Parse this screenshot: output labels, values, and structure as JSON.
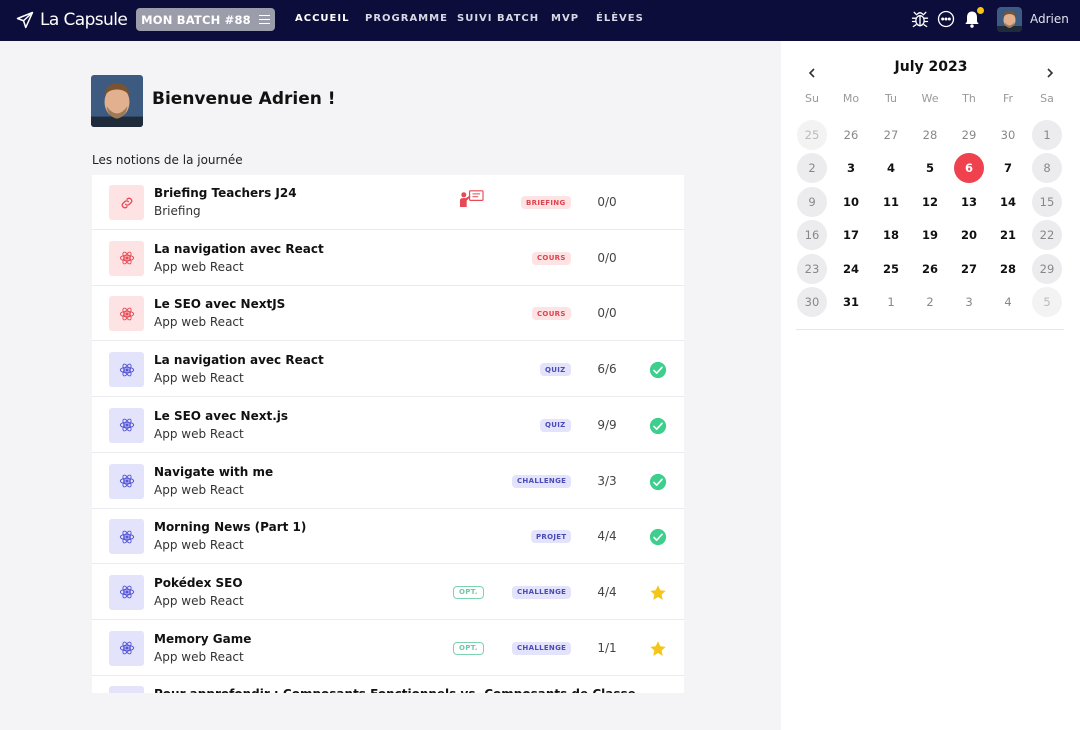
{
  "navbar": {
    "logo_text": "La Capsule",
    "batch_label": "MON BATCH #88",
    "links": [
      "ACCUEIL",
      "PROGRAMME",
      "SUIVI BATCH",
      "MVP",
      "ÉLÈVES"
    ],
    "active_link": "ACCUEIL",
    "username": "Adrien",
    "icons": [
      "bug-icon",
      "chat-icon",
      "bell-icon"
    ],
    "notification_dot_color": "#f5c518"
  },
  "main": {
    "welcome": "Bienvenue Adrien !",
    "section_title": "Les notions de la journée",
    "notions": [
      {
        "title": "Briefing Teachers J24",
        "subtitle": "Briefing",
        "tag": "BRIEFING",
        "count": "0/0",
        "color": "red",
        "icon": "link-icon",
        "teacher": true,
        "opt": false,
        "status": ""
      },
      {
        "title": "La navigation avec React",
        "subtitle": "App web React",
        "tag": "COURS",
        "count": "0/0",
        "color": "red",
        "icon": "react-icon",
        "opt": false,
        "status": ""
      },
      {
        "title": "Le SEO avec NextJS",
        "subtitle": "App web React",
        "tag": "COURS",
        "count": "0/0",
        "color": "red",
        "icon": "react-icon",
        "opt": false,
        "status": ""
      },
      {
        "title": "La navigation avec React",
        "subtitle": "App web React",
        "tag": "QUIZ",
        "count": "6/6",
        "color": "purple",
        "icon": "react-icon",
        "opt": false,
        "status": "check"
      },
      {
        "title": "Le SEO avec Next.js",
        "subtitle": "App web React",
        "tag": "QUIZ",
        "count": "9/9",
        "color": "purple",
        "icon": "react-icon",
        "opt": false,
        "status": "check"
      },
      {
        "title": "Navigate with me",
        "subtitle": "App web React",
        "tag": "CHALLENGE",
        "count": "3/3",
        "color": "purple",
        "icon": "react-icon",
        "opt": false,
        "status": "check"
      },
      {
        "title": "Morning News (Part 1)",
        "subtitle": "App web React",
        "tag": "PROJET",
        "count": "4/4",
        "color": "purple",
        "icon": "react-icon",
        "opt": false,
        "status": "check"
      },
      {
        "title": "Pokédex SEO",
        "subtitle": "App web React",
        "tag": "CHALLENGE",
        "count": "4/4",
        "color": "purple",
        "icon": "react-icon",
        "opt": true,
        "status": "star"
      },
      {
        "title": "Memory Game",
        "subtitle": "App web React",
        "tag": "CHALLENGE",
        "count": "1/1",
        "color": "purple",
        "icon": "react-icon",
        "opt": true,
        "status": "star"
      },
      {
        "title": "Pour approfondir : Composants Fonctionnels vs. Composants de Classe",
        "subtitle": "",
        "tag": "",
        "count": "",
        "color": "purple",
        "icon": "react-icon",
        "opt": false,
        "status": ""
      }
    ],
    "opt_label": "OPT.",
    "colors": {
      "check": "#3ecf8e",
      "star": "#f5c518",
      "red_tag": "#e0444f",
      "purple_tag": "#4b4bb8"
    }
  },
  "calendar": {
    "month": "July 2023",
    "days_of_week": [
      "Su",
      "Mo",
      "Tu",
      "We",
      "Th",
      "Fr",
      "Sa"
    ],
    "weeks": [
      [
        {
          "d": "25",
          "t": "o"
        },
        {
          "d": "26",
          "t": "o"
        },
        {
          "d": "27",
          "t": "o"
        },
        {
          "d": "28",
          "t": "o"
        },
        {
          "d": "29",
          "t": "o"
        },
        {
          "d": "30",
          "t": "o"
        },
        {
          "d": "1",
          "t": "c"
        }
      ],
      [
        {
          "d": "2",
          "t": "c"
        },
        {
          "d": "3",
          "t": "c"
        },
        {
          "d": "4",
          "t": "c"
        },
        {
          "d": "5",
          "t": "c"
        },
        {
          "d": "6",
          "t": "today"
        },
        {
          "d": "7",
          "t": "c"
        },
        {
          "d": "8",
          "t": "c"
        }
      ],
      [
        {
          "d": "9",
          "t": "c"
        },
        {
          "d": "10",
          "t": "c"
        },
        {
          "d": "11",
          "t": "c"
        },
        {
          "d": "12",
          "t": "c"
        },
        {
          "d": "13",
          "t": "c"
        },
        {
          "d": "14",
          "t": "c"
        },
        {
          "d": "15",
          "t": "c"
        }
      ],
      [
        {
          "d": "16",
          "t": "c"
        },
        {
          "d": "17",
          "t": "c"
        },
        {
          "d": "18",
          "t": "c"
        },
        {
          "d": "19",
          "t": "c"
        },
        {
          "d": "20",
          "t": "c"
        },
        {
          "d": "21",
          "t": "c"
        },
        {
          "d": "22",
          "t": "c"
        }
      ],
      [
        {
          "d": "23",
          "t": "c"
        },
        {
          "d": "24",
          "t": "c"
        },
        {
          "d": "25",
          "t": "c"
        },
        {
          "d": "26",
          "t": "c"
        },
        {
          "d": "27",
          "t": "c"
        },
        {
          "d": "28",
          "t": "c"
        },
        {
          "d": "29",
          "t": "c"
        }
      ],
      [
        {
          "d": "30",
          "t": "c"
        },
        {
          "d": "31",
          "t": "c"
        },
        {
          "d": "1",
          "t": "o"
        },
        {
          "d": "2",
          "t": "o"
        },
        {
          "d": "3",
          "t": "o"
        },
        {
          "d": "4",
          "t": "o"
        },
        {
          "d": "5",
          "t": "o"
        }
      ]
    ],
    "today_color": "#f0414f"
  }
}
